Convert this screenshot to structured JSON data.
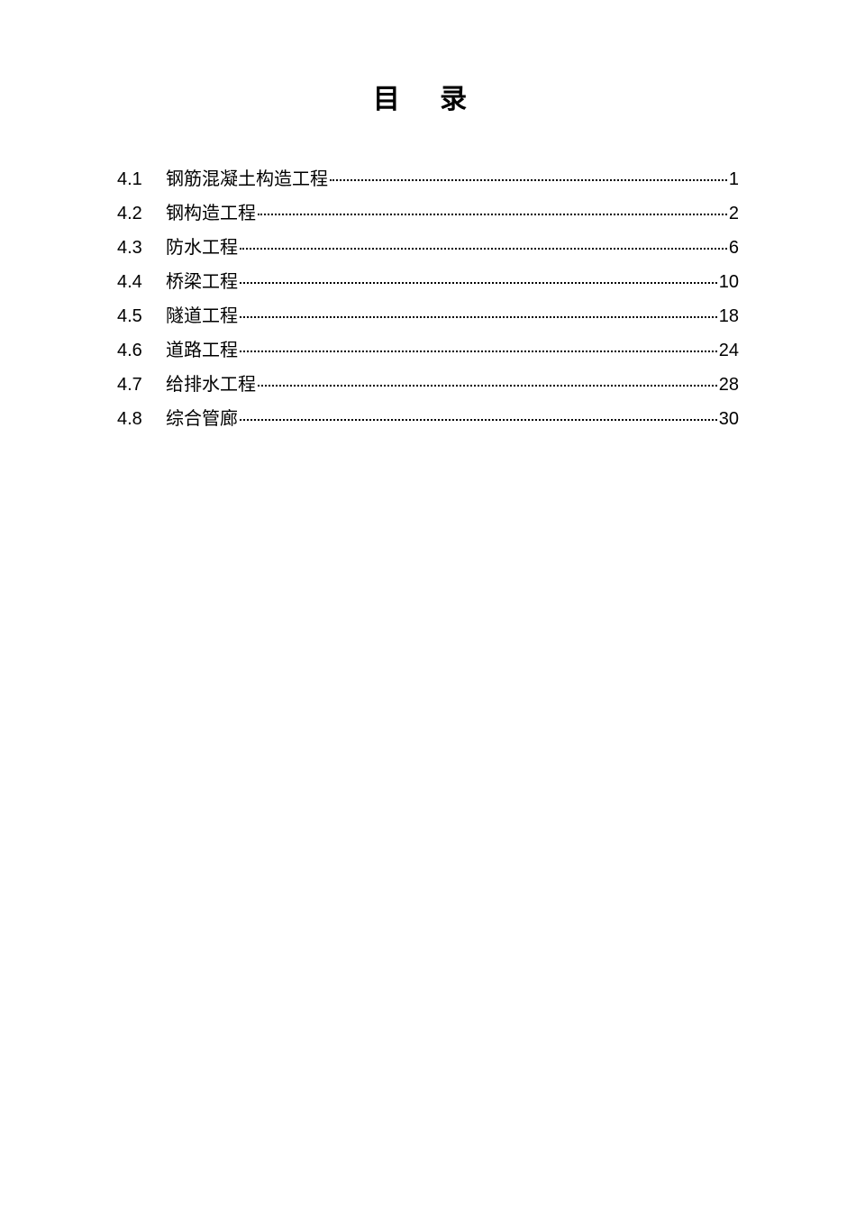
{
  "title": "目 录",
  "toc": {
    "entries": [
      {
        "number": "4.1",
        "label": "钢筋混凝土构造工程",
        "page": "1"
      },
      {
        "number": "4.2",
        "label": "钢构造工程",
        "page": "2"
      },
      {
        "number": "4.3",
        "label": "防水工程",
        "page": "6"
      },
      {
        "number": "4.4",
        "label": "桥梁工程",
        "page": "10"
      },
      {
        "number": "4.5",
        "label": "隧道工程",
        "page": "18"
      },
      {
        "number": "4.6",
        "label": "道路工程",
        "page": "24"
      },
      {
        "number": "4.7",
        "label": "给排水工程",
        "page": "28"
      },
      {
        "number": "4.8",
        "label": "综合管廊",
        "page": "30"
      }
    ]
  },
  "colors": {
    "background": "#ffffff",
    "text": "#000000"
  },
  "typography": {
    "title_fontsize": 30,
    "entry_fontsize": 20,
    "title_font": "SimHei",
    "entry_font": "Microsoft YaHei"
  }
}
